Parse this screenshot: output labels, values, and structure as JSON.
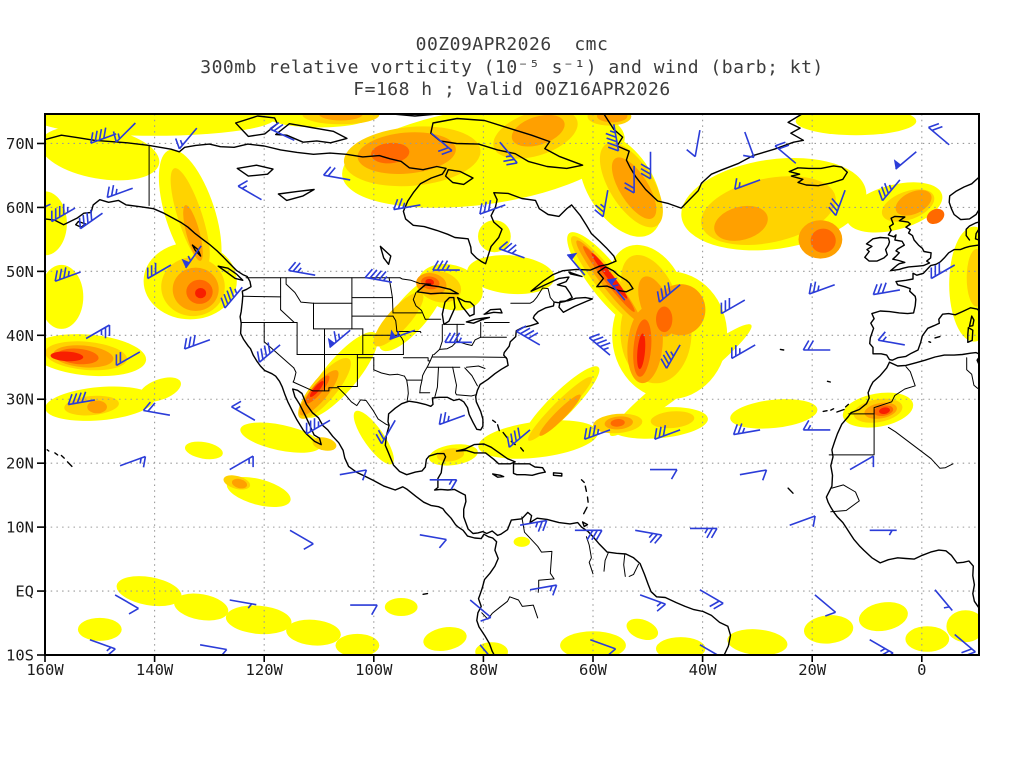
{
  "header": {
    "line1": "00Z09APR2026  cmc",
    "line2": "300mb relative vorticity (10⁻⁵ s⁻¹) and wind (barb; kt)",
    "line3": "F=168 h ; Valid 00Z16APR2026"
  },
  "axes": {
    "lat_ticks": [
      {
        "label": "70N",
        "lat": 70
      },
      {
        "label": "60N",
        "lat": 60
      },
      {
        "label": "50N",
        "lat": 50
      },
      {
        "label": "40N",
        "lat": 40
      },
      {
        "label": "30N",
        "lat": 30
      },
      {
        "label": "20N",
        "lat": 20
      },
      {
        "label": "10N",
        "lat": 10
      },
      {
        "label": "EQ",
        "lat": 0
      },
      {
        "label": "10S",
        "lat": -10
      }
    ],
    "lon_ticks": [
      {
        "label": "160W",
        "lon": -160
      },
      {
        "label": "140W",
        "lon": -140
      },
      {
        "label": "120W",
        "lon": -120
      },
      {
        "label": "100W",
        "lon": -100
      },
      {
        "label": "80W",
        "lon": -80
      },
      {
        "label": "60W",
        "lon": -60
      },
      {
        "label": "40W",
        "lon": -40
      },
      {
        "label": "20W",
        "lon": -20
      },
      {
        "label": "0",
        "lon": 0
      }
    ]
  },
  "colors": {
    "barb": "#2B3CD8",
    "grid": "#9a9a9a",
    "coast": "#000000",
    "frame": "#000000",
    "title_text": "#3c3c3c"
  },
  "chart_data": {
    "type": "heatmap",
    "title": "00Z09APR2026 cmc — 300mb relative vorticity (10⁻⁵ s⁻¹) and wind (barb; kt) — F=168 h ; Valid 00Z16APR2026",
    "model": "cmc",
    "init_time": "00Z09APR2026",
    "valid_time": "00Z16APR2026",
    "forecast_hour": "F=168 h",
    "field": "300mb relative vorticity",
    "units": "10⁻⁵ s⁻¹",
    "wind_units": "kt",
    "projection": "latlon",
    "extent": {
      "lon_min": -160,
      "lon_max": 10.4,
      "lat_min": -10.2,
      "lat_max": 74.6
    },
    "grid": {
      "lat_interval": 10,
      "lon_interval": 20,
      "style": "dotted"
    },
    "legend_position": "none",
    "shading_levels": [
      {
        "rank": 1,
        "color": "#FFFF00"
      },
      {
        "rank": 2,
        "color": "#FFD300"
      },
      {
        "rank": 3,
        "color": "#FFA000"
      },
      {
        "rank": 4,
        "color": "#FF6900"
      },
      {
        "rank": 5,
        "color": "#F81E00"
      }
    ],
    "vorticity_cells": [
      [
        -140,
        74,
        22,
        2.8,
        0,
        1
      ],
      [
        -150,
        68.5,
        11,
        4,
        10,
        1
      ],
      [
        -133.5,
        59,
        4.5,
        10.5,
        -18,
        1
      ],
      [
        -133.5,
        48.5,
        8.5,
        6,
        0,
        1
      ],
      [
        -157,
        46,
        4,
        5,
        0,
        1
      ],
      [
        -160,
        57.5,
        4,
        5,
        0,
        1
      ],
      [
        -152,
        36.9,
        10.5,
        3.2,
        5,
        1
      ],
      [
        -150,
        29.3,
        10,
        2.6,
        -5,
        1
      ],
      [
        -139,
        31.5,
        4,
        1.6,
        -20,
        1
      ],
      [
        -106,
        33.8,
        3,
        8.5,
        40,
        1
      ],
      [
        -93,
        43.5,
        3,
        7.5,
        40,
        1
      ],
      [
        -86,
        47.5,
        6,
        3.5,
        15,
        1
      ],
      [
        -75,
        49.5,
        8,
        3,
        5,
        1
      ],
      [
        -78,
        55.5,
        3,
        2.5,
        0,
        1
      ],
      [
        -100,
        24,
        1.8,
        5,
        -35,
        1
      ],
      [
        -117,
        24,
        7.5,
        2,
        12,
        1
      ],
      [
        -121,
        15.5,
        6,
        2,
        15,
        1
      ],
      [
        -131,
        22,
        3.5,
        1.3,
        10,
        1
      ],
      [
        -85.5,
        21.3,
        4.5,
        1.6,
        -8,
        1
      ],
      [
        -70,
        23.7,
        11,
        2.8,
        -7,
        1
      ],
      [
        -48,
        26.3,
        9,
        2.4,
        -5,
        1
      ],
      [
        -27,
        27.7,
        8,
        2.2,
        -6,
        1
      ],
      [
        -8,
        28.3,
        6.5,
        2.6,
        -10,
        1
      ],
      [
        -66,
        29,
        2.2,
        8.5,
        45,
        1
      ],
      [
        -46,
        40,
        10.5,
        10,
        0,
        1
      ],
      [
        -44,
        33,
        2.2,
        14,
        52,
        1
      ],
      [
        -27,
        60.5,
        17,
        7,
        -8,
        1
      ],
      [
        -5,
        60,
        9,
        3.5,
        -15,
        1
      ],
      [
        -12,
        73.5,
        11,
        2.2,
        0,
        1
      ],
      [
        9.5,
        48,
        4.5,
        9,
        0,
        1
      ],
      [
        -57.5,
        48.5,
        3,
        9.5,
        -38,
        1
      ],
      [
        -50,
        46.5,
        6.5,
        8,
        -25,
        1
      ],
      [
        -80,
        68,
        26,
        7.5,
        -8,
        1
      ],
      [
        -55,
        63.5,
        6,
        9,
        -32,
        1
      ],
      [
        -141,
        0,
        6,
        2.2,
        10,
        1
      ],
      [
        -131.5,
        -2.5,
        5,
        2,
        10,
        1
      ],
      [
        -121,
        -4.5,
        6,
        2.2,
        5,
        1
      ],
      [
        -111,
        -6.5,
        5,
        2,
        5,
        1
      ],
      [
        -103,
        -8.5,
        4,
        1.8,
        0,
        1
      ],
      [
        -150,
        -6,
        4,
        1.8,
        0,
        1
      ],
      [
        -95,
        -2.5,
        3,
        1.4,
        0,
        1
      ],
      [
        -87,
        -7.5,
        4,
        1.8,
        -10,
        1
      ],
      [
        -78.5,
        -9.5,
        3,
        1.5,
        0,
        1
      ],
      [
        -60,
        -8.5,
        6,
        2.2,
        0,
        1
      ],
      [
        -51,
        -6,
        3,
        1.5,
        20,
        1
      ],
      [
        -44,
        -9,
        4.5,
        1.8,
        0,
        1
      ],
      [
        -30,
        -8,
        5.5,
        2,
        5,
        1
      ],
      [
        -17,
        -6,
        4.5,
        2.2,
        -5,
        1
      ],
      [
        -7,
        -4,
        4.5,
        2.2,
        -10,
        1
      ],
      [
        1,
        -7.5,
        4,
        2,
        0,
        1
      ],
      [
        8,
        -5.5,
        3.5,
        2.5,
        0,
        1
      ],
      [
        -73,
        7.7,
        1.5,
        0.8,
        0,
        1
      ],
      [
        -110,
        74.5,
        10,
        2,
        0,
        1
      ],
      [
        -133,
        47.6,
        5.8,
        4.6,
        0,
        2
      ],
      [
        -133.5,
        58.5,
        2.2,
        8,
        -18,
        2
      ],
      [
        -152.5,
        36.8,
        7.5,
        2.2,
        5,
        2
      ],
      [
        -151.5,
        29,
        5,
        1.5,
        -5,
        2
      ],
      [
        -109,
        31.7,
        2.2,
        6,
        40,
        2
      ],
      [
        -95.5,
        42.5,
        2,
        5.5,
        42,
        2
      ],
      [
        -88,
        47.6,
        4,
        2.4,
        15,
        2
      ],
      [
        -70.5,
        71.5,
        8,
        3.4,
        -18,
        2
      ],
      [
        -93,
        68,
        12.5,
        4.6,
        -5,
        2
      ],
      [
        -53,
        63.5,
        4,
        7.5,
        -32,
        2
      ],
      [
        -57.5,
        48.5,
        2,
        8.8,
        -38,
        2
      ],
      [
        -49.5,
        46,
        4.5,
        7,
        -25,
        2
      ],
      [
        -48.5,
        40.5,
        6.5,
        8,
        0,
        2
      ],
      [
        -66,
        28.5,
        1.3,
        7,
        45,
        2
      ],
      [
        -55.5,
        26.2,
        4.5,
        1.5,
        -5,
        2
      ],
      [
        -45.5,
        26.8,
        4,
        1.3,
        -5,
        2
      ],
      [
        -8,
        28.2,
        4.5,
        1.8,
        -10,
        2
      ],
      [
        -28,
        59.5,
        12.5,
        5,
        -12,
        2
      ],
      [
        -2.5,
        60.3,
        5,
        2.2,
        -20,
        2
      ],
      [
        -125,
        17,
        2.5,
        1,
        15,
        2
      ],
      [
        -109,
        23,
        2.2,
        1,
        12,
        2
      ],
      [
        10,
        49,
        1.8,
        4.5,
        0,
        2
      ],
      [
        -57,
        74.2,
        4,
        1.4,
        0,
        2
      ],
      [
        -86,
        21.3,
        2.5,
        1,
        -8,
        2
      ],
      [
        -106,
        74.5,
        7,
        1.5,
        0,
        2
      ],
      [
        -132.5,
        47.2,
        4.2,
        3.4,
        0,
        3
      ],
      [
        -153,
        36.7,
        5.5,
        1.7,
        5,
        3
      ],
      [
        -150.5,
        28.8,
        1.8,
        1,
        0,
        3
      ],
      [
        -110,
        31,
        1.5,
        4.5,
        40,
        3
      ],
      [
        -89.5,
        48,
        2.8,
        1.7,
        10,
        3
      ],
      [
        -94,
        68.5,
        9,
        3.2,
        -5,
        3
      ],
      [
        -70,
        72,
        5,
        2.2,
        -18,
        3
      ],
      [
        -52.5,
        63,
        2.6,
        5.5,
        -32,
        3
      ],
      [
        -57.2,
        48.5,
        1.3,
        8,
        -38,
        3
      ],
      [
        -48.5,
        44.5,
        2.6,
        5,
        -22,
        3
      ],
      [
        -50.5,
        38.5,
        3.2,
        6,
        5,
        3
      ],
      [
        -44,
        44,
        4.5,
        4,
        0,
        3
      ],
      [
        -55.3,
        26.3,
        2.6,
        1,
        -5,
        3
      ],
      [
        -7.5,
        28.2,
        3,
        1.2,
        -10,
        3
      ],
      [
        -33,
        57.5,
        5,
        2.6,
        -15,
        3
      ],
      [
        -18.5,
        55,
        4,
        3,
        0,
        3
      ],
      [
        -1.5,
        60.7,
        3.5,
        1.7,
        -25,
        3
      ],
      [
        -66,
        27.5,
        0.9,
        4.5,
        45,
        3
      ],
      [
        -124.5,
        16.8,
        1.4,
        0.7,
        15,
        3
      ],
      [
        -133,
        56,
        1.2,
        4.5,
        -15,
        3
      ],
      [
        -56.5,
        74.3,
        2.8,
        1,
        0,
        3
      ],
      [
        -106,
        74.6,
        4,
        1,
        0,
        3
      ],
      [
        -131.8,
        46.8,
        2.4,
        1.9,
        0,
        4
      ],
      [
        -154,
        36.7,
        3.8,
        1.2,
        5,
        4
      ],
      [
        -110.3,
        31.5,
        0.9,
        2.8,
        40,
        4
      ],
      [
        -89.7,
        48.2,
        1.7,
        1,
        10,
        4
      ],
      [
        -57.1,
        48.8,
        0.8,
        6.5,
        -38,
        4
      ],
      [
        -51,
        38,
        1.6,
        4.5,
        5,
        4
      ],
      [
        -47,
        42.5,
        1.5,
        2,
        0,
        4
      ],
      [
        -18,
        54.8,
        2.3,
        1.9,
        0,
        4
      ],
      [
        -7,
        28.2,
        1.8,
        0.8,
        -10,
        4
      ],
      [
        2.5,
        58.6,
        1.7,
        1.1,
        -30,
        4
      ],
      [
        -97,
        68.5,
        3.5,
        1.6,
        -5,
        4
      ],
      [
        -55.5,
        26.3,
        1.3,
        0.6,
        -5,
        4
      ],
      [
        -156,
        36.7,
        3,
        0.75,
        3,
        5
      ],
      [
        -57,
        49.3,
        0.55,
        4.5,
        -38,
        5
      ],
      [
        -110.4,
        31.6,
        0.5,
        1.6,
        40,
        5
      ],
      [
        -6.8,
        28.2,
        1,
        0.5,
        -10,
        5
      ],
      [
        -131.6,
        46.6,
        1,
        0.8,
        0,
        5
      ],
      [
        -51.2,
        37.5,
        0.7,
        2.8,
        5,
        5
      ],
      [
        -89.8,
        48.3,
        0.8,
        0.5,
        10,
        5
      ]
    ],
    "wind_barbs": [
      [
        -147,
        71.5,
        250,
        40
      ],
      [
        -143.5,
        73.2,
        225,
        15
      ],
      [
        -132.3,
        72.4,
        220,
        15
      ],
      [
        -114.5,
        70.5,
        295,
        20
      ],
      [
        -89.5,
        71.6,
        130,
        20
      ],
      [
        -77,
        70.2,
        140,
        25
      ],
      [
        -56.2,
        73,
        170,
        45
      ],
      [
        -49.5,
        68.7,
        180,
        30
      ],
      [
        -40.5,
        72.1,
        190,
        10
      ],
      [
        -32.3,
        71.8,
        160,
        10
      ],
      [
        5,
        69.8,
        310,
        20
      ],
      [
        -1,
        68.7,
        230,
        50
      ],
      [
        -154.5,
        59.9,
        240,
        45
      ],
      [
        -149.5,
        59.1,
        235,
        40
      ],
      [
        -159,
        60.5,
        245,
        30
      ],
      [
        -144,
        63,
        250,
        25
      ],
      [
        -120.5,
        61.2,
        300,
        15
      ],
      [
        -104.3,
        64.3,
        280,
        20
      ],
      [
        -91.5,
        60.4,
        260,
        25
      ],
      [
        -76,
        60.4,
        250,
        30
      ],
      [
        -57.3,
        62.7,
        190,
        25
      ],
      [
        -52.5,
        66.5,
        180,
        20
      ],
      [
        -29.5,
        64.3,
        250,
        15
      ],
      [
        -23,
        66.9,
        310,
        20
      ],
      [
        -14,
        62.7,
        200,
        30
      ],
      [
        -4,
        64.3,
        220,
        35
      ],
      [
        -153.5,
        49.9,
        250,
        35
      ],
      [
        -137,
        51,
        240,
        30
      ],
      [
        -131.5,
        54,
        215,
        55
      ],
      [
        -124,
        47.5,
        220,
        45
      ],
      [
        -110.7,
        49.4,
        280,
        25
      ],
      [
        -96.7,
        48.3,
        280,
        45
      ],
      [
        -84.3,
        50.2,
        270,
        35
      ],
      [
        -72.5,
        52.1,
        290,
        35
      ],
      [
        -61.5,
        49.4,
        320,
        50
      ],
      [
        -54.2,
        45.5,
        320,
        55
      ],
      [
        -44.1,
        47.9,
        230,
        40
      ],
      [
        -32.3,
        45.5,
        240,
        30
      ],
      [
        -15.9,
        47.9,
        250,
        25
      ],
      [
        -4,
        47.1,
        260,
        30
      ],
      [
        6,
        51,
        240,
        30
      ],
      [
        -152.5,
        39.5,
        60,
        25
      ],
      [
        -142.7,
        37.4,
        240,
        20
      ],
      [
        -129.9,
        39.3,
        250,
        30
      ],
      [
        -117.1,
        38.5,
        230,
        40
      ],
      [
        -104.3,
        40.8,
        230,
        65
      ],
      [
        -92.5,
        40.8,
        250,
        55
      ],
      [
        -82.1,
        38.9,
        270,
        35
      ],
      [
        -69.7,
        38.5,
        300,
        40
      ],
      [
        -56.9,
        36.9,
        310,
        45
      ],
      [
        -44.1,
        38.5,
        210,
        35
      ],
      [
        -30.4,
        38.5,
        240,
        25
      ],
      [
        -16.7,
        37.7,
        270,
        20
      ],
      [
        -3.1,
        38.5,
        280,
        15
      ],
      [
        -150.9,
        29.9,
        260,
        40
      ],
      [
        -137.2,
        27.5,
        280,
        20
      ],
      [
        -121.7,
        26.7,
        300,
        15
      ],
      [
        -108,
        26.7,
        240,
        35
      ],
      [
        -96.1,
        26.7,
        210,
        20
      ],
      [
        -83.4,
        27.5,
        250,
        25
      ],
      [
        -71.5,
        25.2,
        230,
        40
      ],
      [
        -56.9,
        25.2,
        250,
        35
      ],
      [
        -44.1,
        25.2,
        250,
        30
      ],
      [
        -29.5,
        25.2,
        260,
        25
      ],
      [
        -16.7,
        25.2,
        270,
        15
      ],
      [
        -146.3,
        19.6,
        70,
        15
      ],
      [
        -126.3,
        19,
        60,
        15
      ],
      [
        -106.2,
        18.2,
        80,
        10
      ],
      [
        -89.8,
        17.4,
        90,
        15
      ],
      [
        -49.6,
        19,
        90,
        10
      ],
      [
        -33.2,
        18.2,
        80,
        10
      ],
      [
        -13.1,
        19,
        60,
        10
      ],
      [
        -115.3,
        9.5,
        120,
        10
      ],
      [
        -91.6,
        8.8,
        100,
        10
      ],
      [
        -73.3,
        10.3,
        80,
        25
      ],
      [
        -63.3,
        9.5,
        90,
        30
      ],
      [
        -52.3,
        9.5,
        100,
        25
      ],
      [
        -42.3,
        9.8,
        90,
        25
      ],
      [
        -24.1,
        10.3,
        70,
        10
      ],
      [
        -9.5,
        9.5,
        90,
        5
      ],
      [
        -147.2,
        -0.6,
        120,
        10
      ],
      [
        -126.3,
        -1.4,
        100,
        5
      ],
      [
        -104.3,
        -2.2,
        90,
        10
      ],
      [
        -82.4,
        -1.4,
        130,
        10
      ],
      [
        -71.5,
        0.2,
        80,
        15
      ],
      [
        -51.4,
        -0.6,
        110,
        15
      ],
      [
        -40.5,
        0.2,
        120,
        20
      ],
      [
        -19.5,
        -0.6,
        130,
        10
      ],
      [
        2.4,
        0.2,
        140,
        5
      ],
      [
        -151.8,
        -7.6,
        110,
        15
      ],
      [
        -131.7,
        -8.4,
        100,
        10
      ],
      [
        -80.6,
        -8.4,
        140,
        15
      ],
      [
        -60.5,
        -7.6,
        110,
        10
      ],
      [
        -40.5,
        -8.4,
        120,
        20
      ],
      [
        -9.5,
        -7.6,
        120,
        25
      ],
      [
        6,
        -6.8,
        130,
        20
      ]
    ]
  }
}
